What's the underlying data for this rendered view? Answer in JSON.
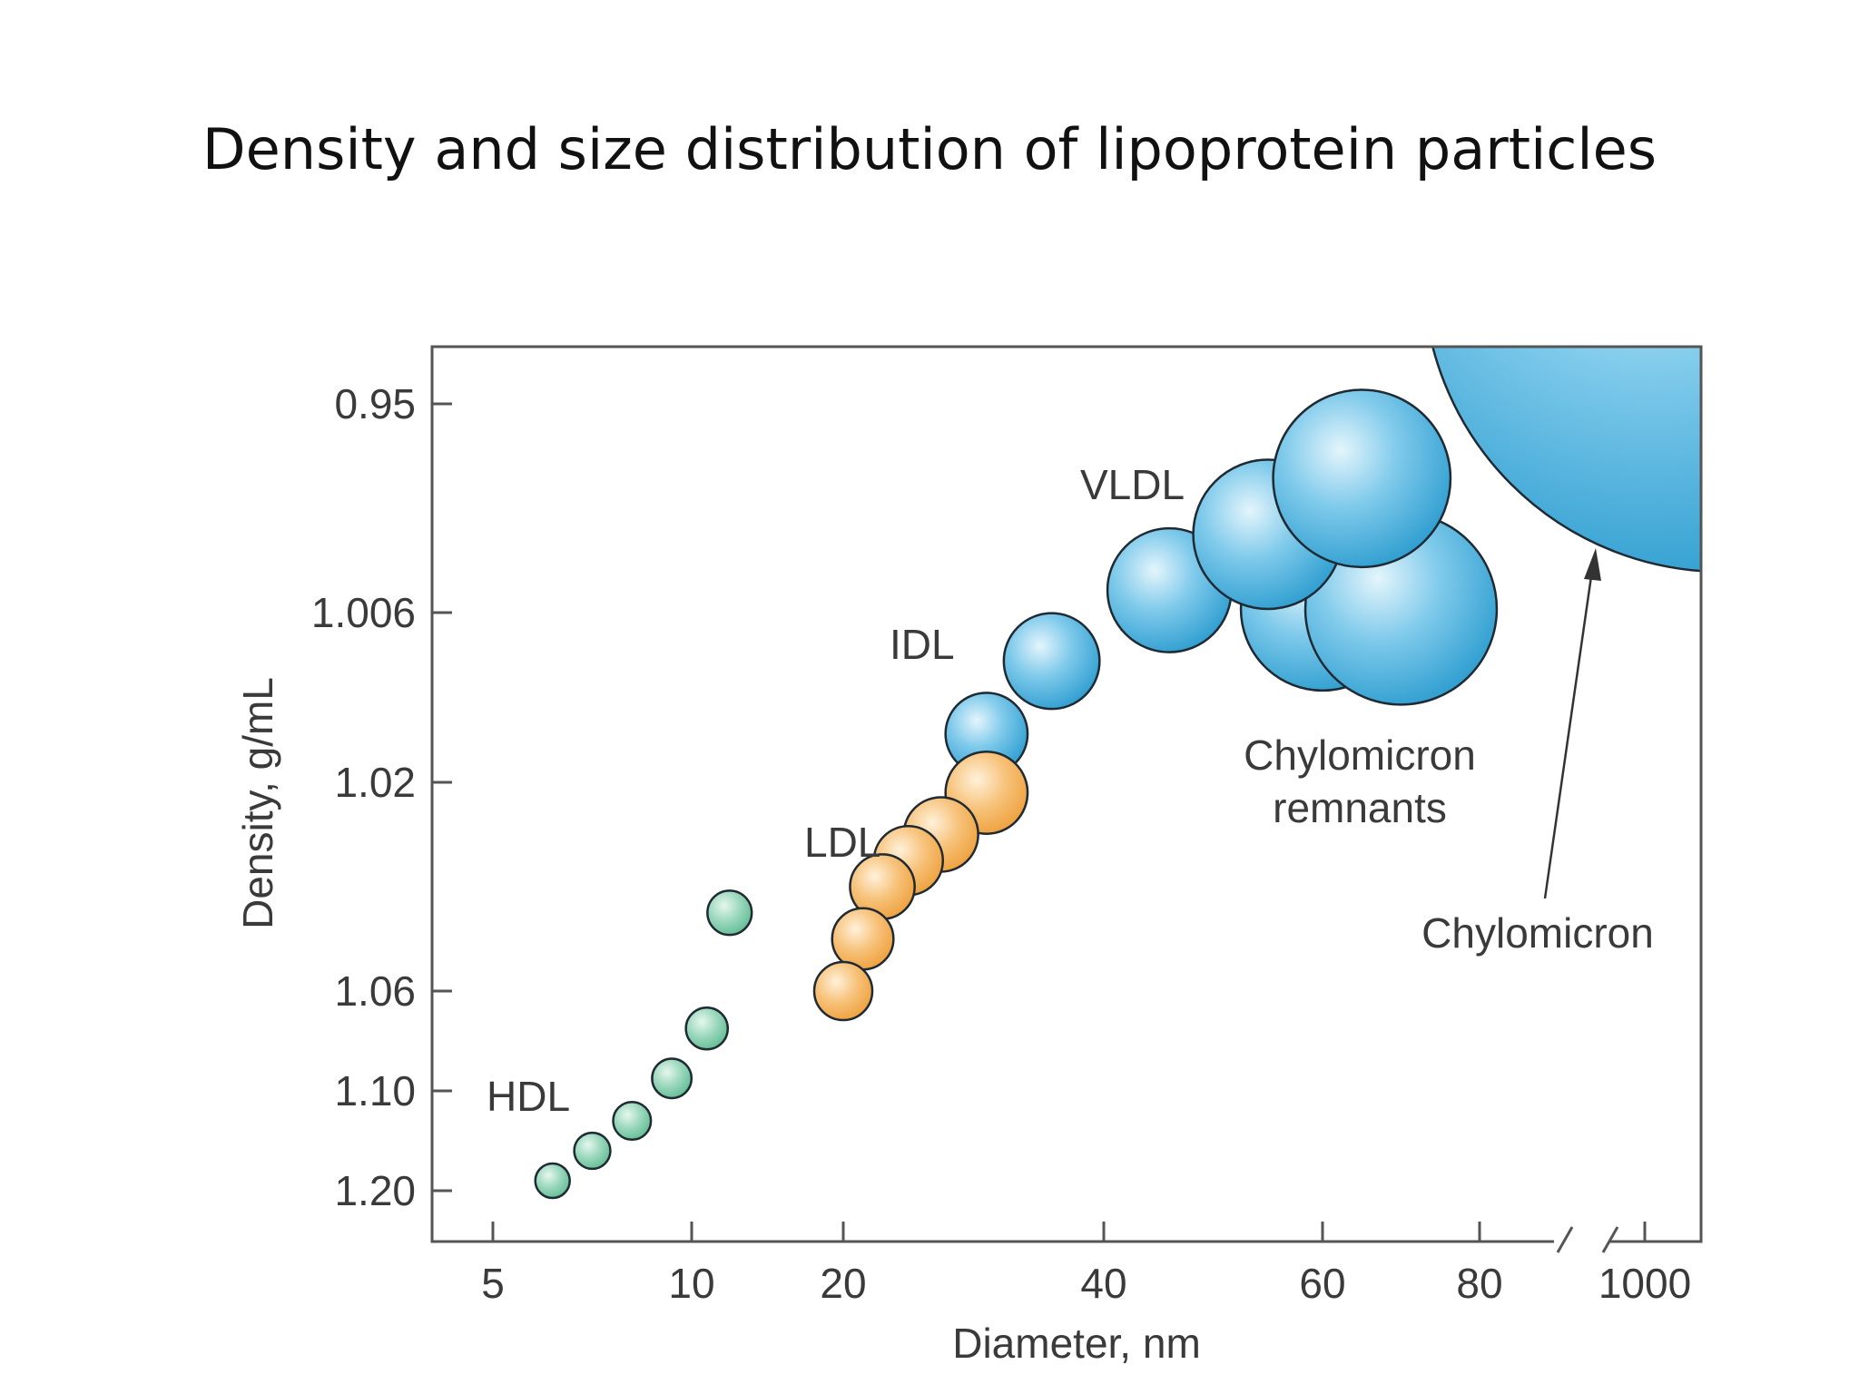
{
  "slide": {
    "title": "Density and size distribution of lipoprotein particles"
  },
  "chart_data": {
    "type": "scatter",
    "title": "Density and size distribution of lipoprotein particles",
    "xlabel": "Diameter, nm",
    "ylabel": "Density, g/mL",
    "x_ticks": [
      "5",
      "10",
      "20",
      "40",
      "60",
      "80",
      "1000"
    ],
    "y_ticks": [
      "0.95",
      "1.006",
      "1.02",
      "1.06",
      "1.10",
      "1.20"
    ],
    "x_axis_break": "between 80 and 1000",
    "grid": false,
    "legend": "none",
    "series": [
      {
        "name": "HDL",
        "color": "#7dc9a6",
        "points": [
          {
            "x": 6.5,
            "y": 1.19
          },
          {
            "x": 7.5,
            "y": 1.16
          },
          {
            "x": 8.5,
            "y": 1.13
          },
          {
            "x": 9.5,
            "y": 1.095
          },
          {
            "x": 11.0,
            "y": 1.075
          },
          {
            "x": 12.5,
            "y": 1.045
          }
        ]
      },
      {
        "name": "LDL",
        "color": "#f3b15c",
        "points": [
          {
            "x": 20,
            "y": 1.06
          },
          {
            "x": 21.5,
            "y": 1.05
          },
          {
            "x": 23,
            "y": 1.04
          },
          {
            "x": 25,
            "y": 1.035
          },
          {
            "x": 27.5,
            "y": 1.03
          },
          {
            "x": 31,
            "y": 1.022
          }
        ]
      },
      {
        "name": "IDL",
        "color": "#4fb0dc",
        "points": [
          {
            "x": 31,
            "y": 1.016
          },
          {
            "x": 36,
            "y": 1.01
          }
        ]
      },
      {
        "name": "VLDL",
        "color": "#4fb0dc",
        "points": [
          {
            "x": 46,
            "y": 1.0
          },
          {
            "x": 55,
            "y": 0.985
          },
          {
            "x": 65,
            "y": 0.97
          }
        ]
      },
      {
        "name": "Chylomicron remnants",
        "color": "#4fb0dc",
        "points": [
          {
            "x": 60,
            "y": 1.005
          },
          {
            "x": 70,
            "y": 1.005
          }
        ]
      },
      {
        "name": "Chylomicron",
        "color": "#4fb0dc",
        "points": [
          {
            "x": 1000,
            "y": 0.93
          }
        ]
      }
    ],
    "annotations": [
      "HDL",
      "LDL",
      "IDL",
      "VLDL",
      "Chylomicron remnants",
      "Chylomicron"
    ],
    "label_text": {
      "hdl": "HDL",
      "ldl": "LDL",
      "idl": "IDL",
      "vldl": "VLDL",
      "remnants_line1": "Chylomicron",
      "remnants_line2": "remnants",
      "chylomicron": "Chylomicron"
    }
  }
}
